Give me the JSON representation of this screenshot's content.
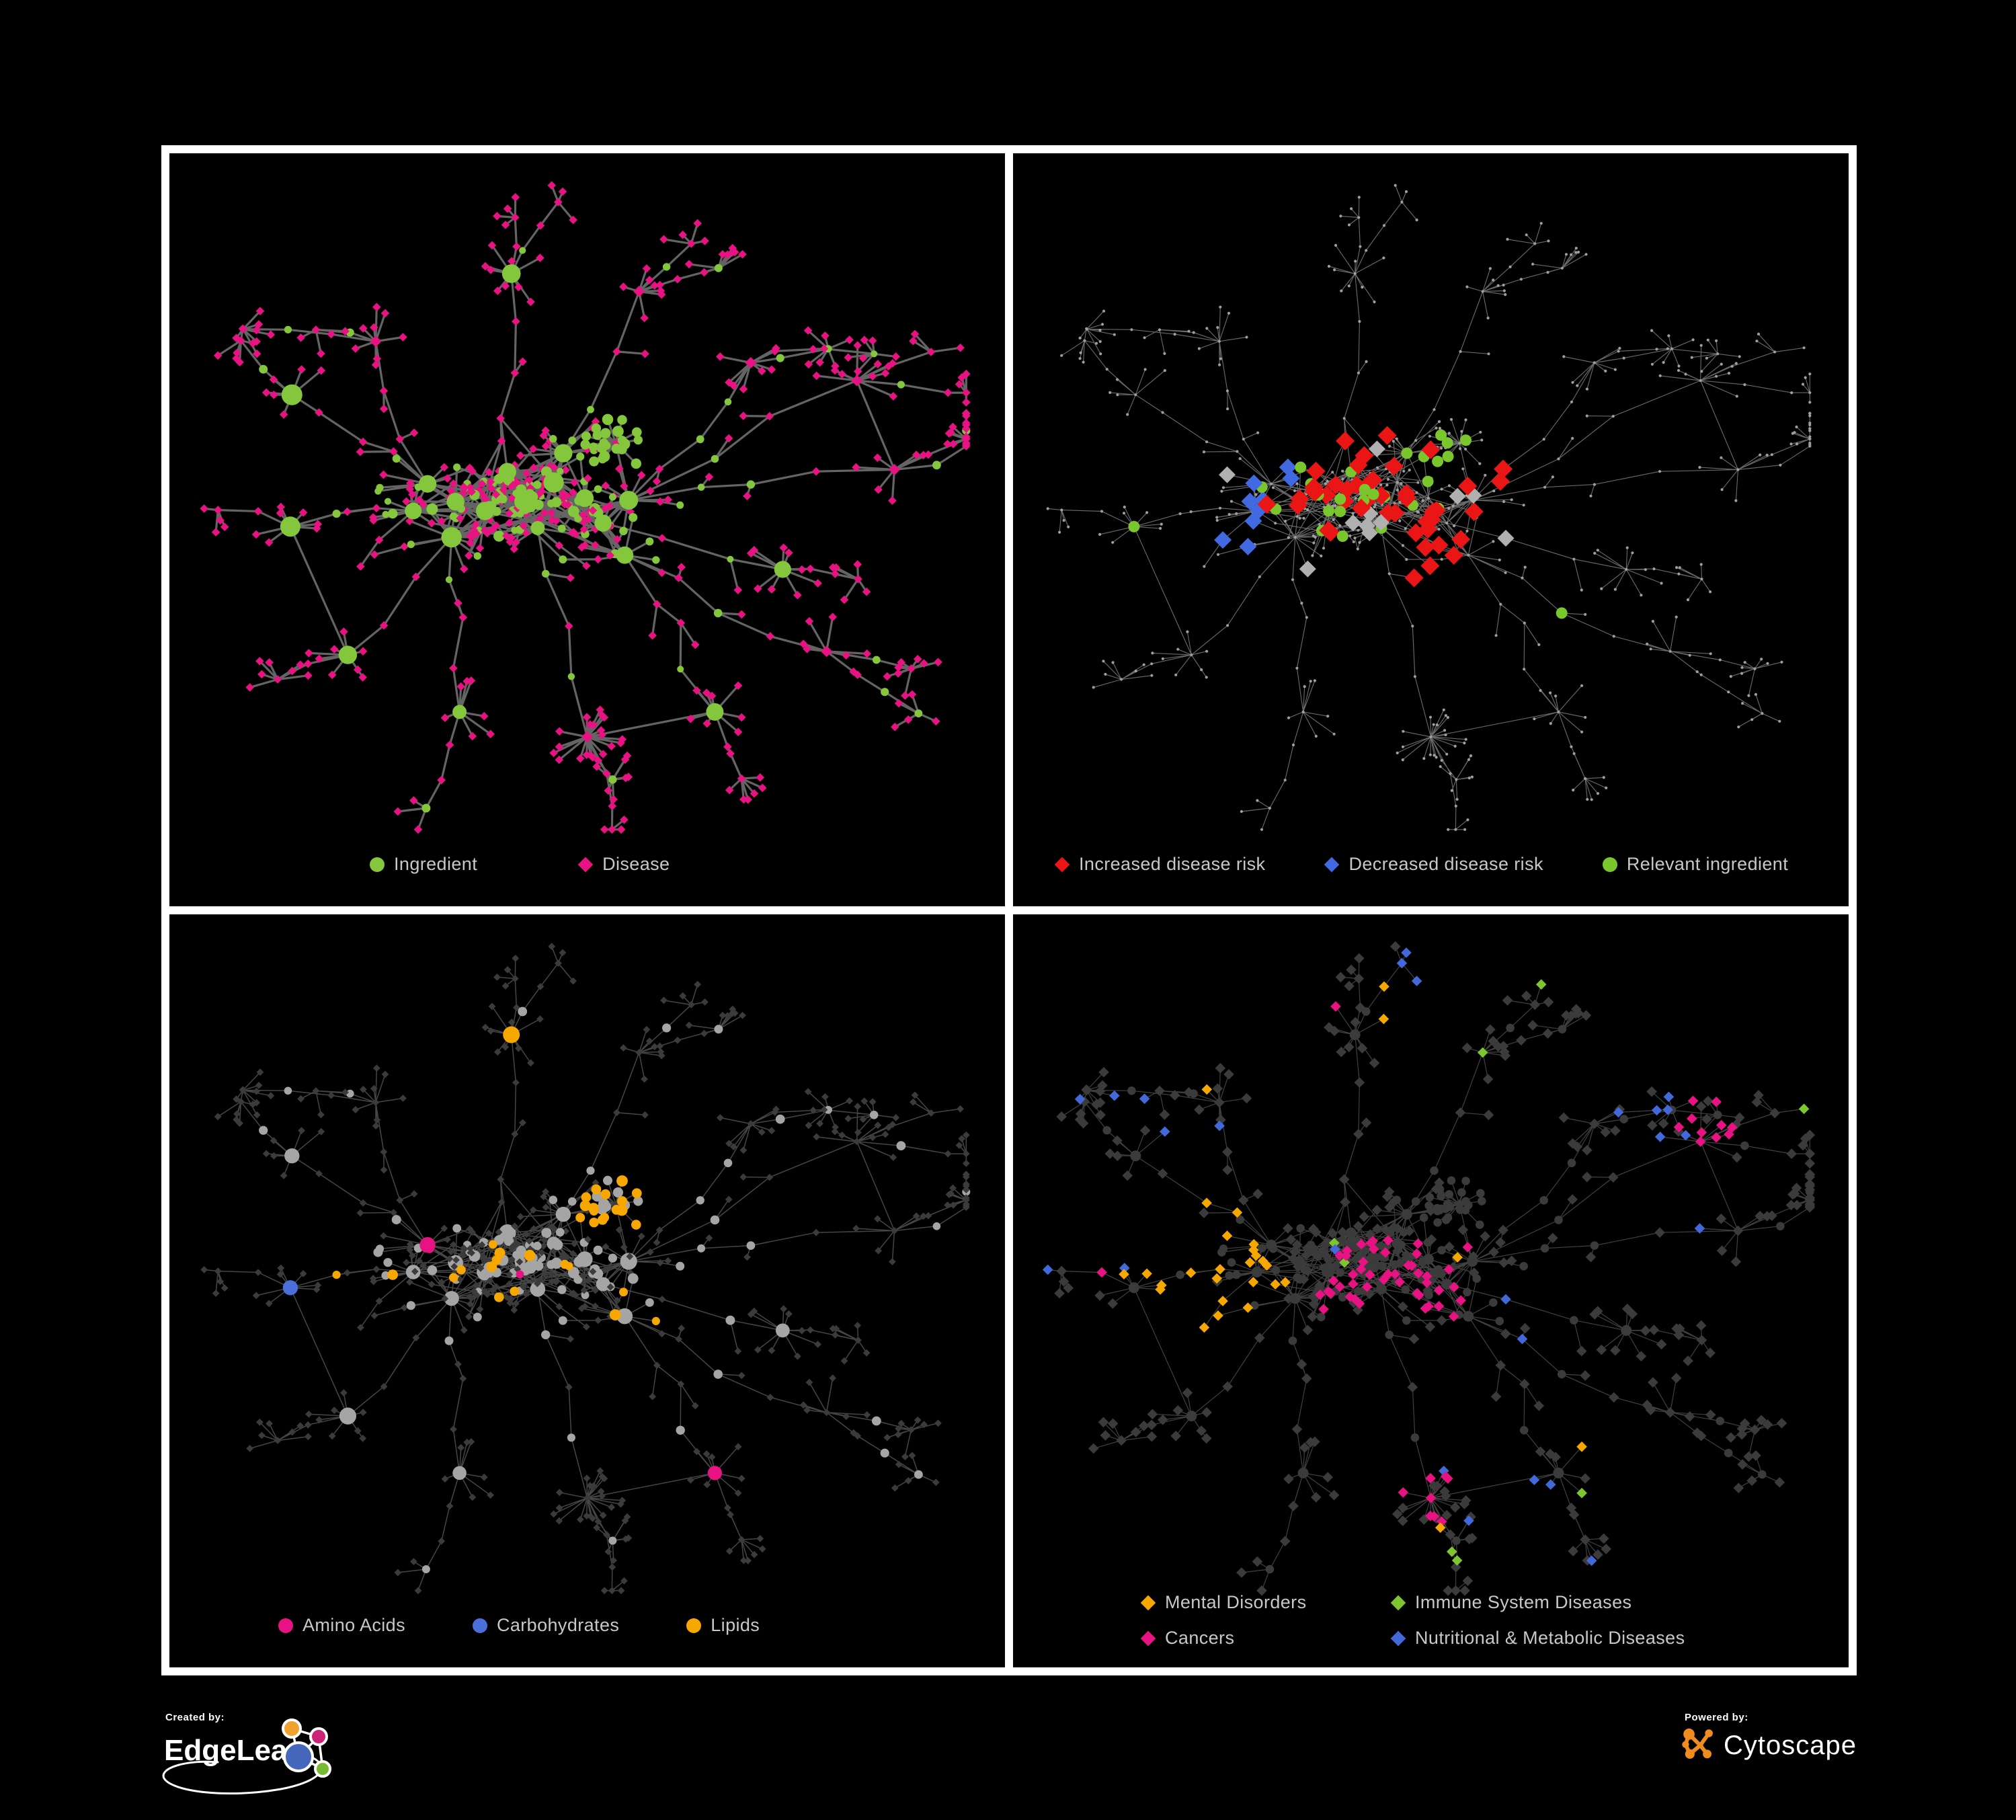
{
  "colors": {
    "background": "#000000",
    "panel_border": "#ffffff",
    "legend_text": "#c8c8c8",
    "ingredient_green": "#84c63c",
    "disease_pink": "#e81283",
    "risk_red": "#ea1515",
    "risk_blue": "#4169e1",
    "risk_silver": "#b0b0b0",
    "relevant_green": "#7ac62d",
    "amino_pink": "#e81283",
    "carbs_blue": "#4a6fd9",
    "lipids_orange": "#f6a800",
    "mental_orange": "#f6a800",
    "immune_green": "#7dc62f",
    "cancers_pink": "#e81283",
    "nutritional_blue": "#4169d9",
    "node_gray_light": "#a5a5a5",
    "node_gray_tiny": "#9f9f9f",
    "node_gray_dark": "#3b3b3b",
    "edgeleap_orange": "#f0a22e",
    "edgeleap_magenta": "#cc2277",
    "edgeleap_blue": "#4466bb",
    "edgeleap_green": "#77bb33",
    "cytoscape_orange": "#f08c1e"
  },
  "panels": [
    {
      "name": "ingredient-disease-network",
      "edge_color": "#646464",
      "legend": [
        {
          "label": "Ingredient",
          "shape": "circle",
          "color": "#84c63c"
        },
        {
          "label": "Disease",
          "shape": "diamond",
          "color": "#e81283"
        }
      ]
    },
    {
      "name": "disease-risk-network",
      "edge_color": "#7a7a7a",
      "legend": [
        {
          "label": "Increased disease risk",
          "shape": "diamond",
          "color": "#ea1515"
        },
        {
          "label": "Decreased disease risk",
          "shape": "diamond",
          "color": "#4169e1"
        },
        {
          "label": "Relevant ingredient",
          "shape": "circle",
          "color": "#7ac62d"
        }
      ]
    },
    {
      "name": "nutrient-class-network",
      "edge_color": "#8c8c8c",
      "legend": [
        {
          "label": "Amino Acids",
          "shape": "circle",
          "color": "#e81283"
        },
        {
          "label": "Carbohydrates",
          "shape": "circle",
          "color": "#4a6fd9"
        },
        {
          "label": "Lipids",
          "shape": "circle",
          "color": "#f6a800"
        }
      ]
    },
    {
      "name": "disease-category-network",
      "edge_color": "#9a9a9a",
      "legend": [
        {
          "label": "Mental Disorders",
          "shape": "diamond",
          "color": "#f6a800"
        },
        {
          "label": "Immune System Diseases",
          "shape": "diamond",
          "color": "#7dc62f"
        },
        {
          "label": "Cancers",
          "shape": "diamond",
          "color": "#e81283"
        },
        {
          "label": "Nutritional & Metabolic Diseases",
          "shape": "diamond",
          "color": "#4169d9"
        }
      ]
    }
  ],
  "footer": {
    "created_by_label": "Created by:",
    "created_by_brand": "EdgeLeap",
    "powered_by_label": "Powered by:",
    "powered_by_brand": "Cytoscape"
  }
}
